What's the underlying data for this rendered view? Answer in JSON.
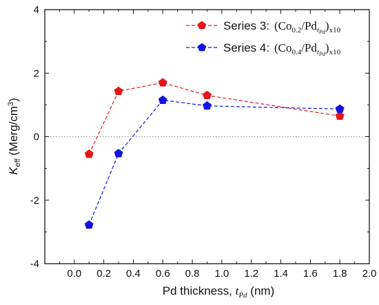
{
  "chart_data": {
    "type": "line",
    "xlabel": {
      "prefix": "Pd thickness, ",
      "var": "t",
      "var_sub": "Pd",
      "suffix": " (nm)"
    },
    "ylabel": {
      "main": "K",
      "sub": "eff",
      "suffix": " (Merg/cm",
      "sup": "3",
      "close": ")"
    },
    "xlim": [
      -0.2,
      2.0
    ],
    "ylim": [
      -4,
      4
    ],
    "x_ticks": [
      "0.0",
      "0.2",
      "0.4",
      "0.6",
      "0.8",
      "1.0",
      "1.2",
      "1.4",
      "1.6",
      "1.8",
      "2.0"
    ],
    "x_tick_values": [
      0.0,
      0.2,
      0.4,
      0.6,
      0.8,
      1.0,
      1.2,
      1.4,
      1.6,
      1.8,
      2.0
    ],
    "y_ticks": [
      "-4",
      "-2",
      "0",
      "2",
      "4"
    ],
    "y_tick_values": [
      -4,
      -2,
      0,
      2,
      4
    ],
    "reference_line_y": 0,
    "legend_position": "top-right",
    "series": [
      {
        "name": "Series 3:",
        "formula": {
          "open": "(Co",
          "co_sub": "0.2",
          "mid": "/Pd",
          "t": "t",
          "t_sub": "Pd",
          "close": ")",
          "rep": "x10"
        },
        "color": "#e8141b",
        "marker": "pentagon",
        "x": [
          0.1,
          0.3,
          0.6,
          0.9,
          1.8
        ],
        "y": [
          -0.55,
          1.43,
          1.7,
          1.3,
          0.65
        ]
      },
      {
        "name": "Series 4:",
        "formula": {
          "open": "(Co",
          "co_sub": "0.4",
          "mid": "/Pd",
          "t": "t",
          "t_sub": "Pd",
          "close": ")",
          "rep": "x10"
        },
        "color": "#1414e0",
        "marker": "pentagon",
        "x": [
          0.1,
          0.3,
          0.6,
          0.9,
          1.8
        ],
        "y": [
          -2.78,
          -0.53,
          1.15,
          0.97,
          0.87
        ]
      }
    ]
  }
}
